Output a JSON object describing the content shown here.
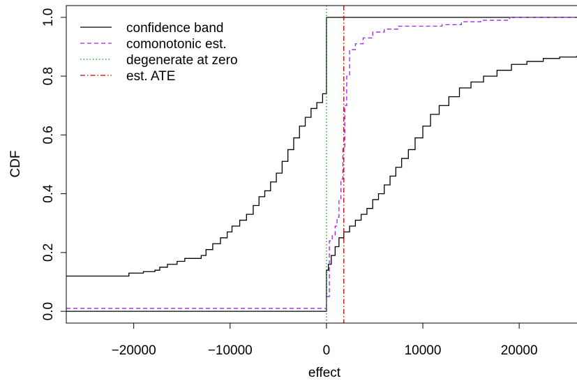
{
  "chart_data": {
    "type": "line",
    "title": "",
    "xlabel": "effect",
    "ylabel": "CDF",
    "xlim": [
      -27000,
      26000
    ],
    "ylim": [
      -0.04,
      1.04
    ],
    "grid": false,
    "legend_position": "top-left",
    "x_ticks": [
      {
        "value": -20000,
        "label": "−20000"
      },
      {
        "value": -10000,
        "label": "−10000"
      },
      {
        "value": 0,
        "label": "0"
      },
      {
        "value": 10000,
        "label": "10000"
      },
      {
        "value": 20000,
        "label": "20000"
      }
    ],
    "y_ticks": [
      {
        "value": 0.0,
        "label": "0.0"
      },
      {
        "value": 0.2,
        "label": "0.2"
      },
      {
        "value": 0.4,
        "label": "0.4"
      },
      {
        "value": 0.6,
        "label": "0.6"
      },
      {
        "value": 0.8,
        "label": "0.8"
      },
      {
        "value": 1.0,
        "label": "1.0"
      }
    ],
    "series": [
      {
        "name": "confidence band",
        "style": "solid",
        "color": "#000000",
        "x": [
          -27000,
          -21000,
          -20500,
          -19000,
          -17800,
          -17300,
          -16500,
          -15500,
          -14700,
          -13000,
          -12500,
          -11800,
          -11000,
          -10300,
          -9800,
          -9000,
          -8300,
          -7600,
          -7000,
          -6400,
          -5800,
          -5200,
          -4600,
          -4000,
          -3400,
          -2800,
          -2200,
          -1600,
          -1000,
          -400,
          0,
          0
        ],
        "y": [
          0.12,
          0.12,
          0.13,
          0.135,
          0.14,
          0.15,
          0.16,
          0.17,
          0.18,
          0.19,
          0.21,
          0.23,
          0.25,
          0.27,
          0.29,
          0.31,
          0.33,
          0.36,
          0.39,
          0.41,
          0.44,
          0.47,
          0.51,
          0.55,
          0.59,
          0.63,
          0.66,
          0.69,
          0.71,
          0.74,
          0.76,
          1.0
        ]
      },
      {
        "name": "confidence band",
        "style": "solid",
        "color": "#000000",
        "x": [
          0,
          26000
        ],
        "y": [
          1.0,
          1.0
        ]
      },
      {
        "name": "confidence band",
        "style": "solid",
        "color": "#000000",
        "x": [
          -27000,
          0,
          0,
          200,
          500,
          900,
          1300,
          1800,
          2400,
          3000,
          3600,
          4200,
          4800,
          5400,
          6000,
          6600,
          7200,
          7800,
          8500,
          9200,
          10000,
          10800,
          11700,
          12700,
          13800,
          15000,
          16300,
          17700,
          19200,
          20800,
          22500,
          24200,
          26000
        ],
        "y": [
          0.0,
          0.0,
          0.14,
          0.16,
          0.19,
          0.22,
          0.25,
          0.27,
          0.29,
          0.31,
          0.33,
          0.35,
          0.38,
          0.4,
          0.43,
          0.46,
          0.49,
          0.52,
          0.55,
          0.59,
          0.63,
          0.67,
          0.7,
          0.73,
          0.76,
          0.78,
          0.8,
          0.82,
          0.84,
          0.85,
          0.86,
          0.865,
          0.87
        ]
      },
      {
        "name": "comonotonic est.",
        "style": "dashed",
        "color": "#a020f0",
        "x": [
          -27000,
          0,
          0,
          300,
          600,
          900,
          1100,
          1300,
          1500,
          1700,
          1900,
          2100,
          2400,
          3000,
          3800,
          4800,
          6000,
          7500,
          9500,
          12000,
          14000,
          16000,
          19000,
          26000
        ],
        "y": [
          0.01,
          0.01,
          0.05,
          0.24,
          0.26,
          0.29,
          0.32,
          0.38,
          0.45,
          0.56,
          0.7,
          0.8,
          0.89,
          0.91,
          0.93,
          0.95,
          0.96,
          0.97,
          0.97,
          0.975,
          0.985,
          0.99,
          1.0,
          1.0
        ]
      },
      {
        "name": "degenerate at zero",
        "style": "dotted",
        "color": "#00a000",
        "vertical_at": 0
      },
      {
        "name": "est. ATE",
        "style": "dotdash",
        "color": "#c00000",
        "vertical_at": 1800
      }
    ]
  },
  "legend": [
    {
      "label": "confidence band",
      "color": "#000000",
      "dash": ""
    },
    {
      "label": "comonotonic est.",
      "color": "#a020f0",
      "dash": "6,4"
    },
    {
      "label": "degenerate at zero",
      "color": "#00a000",
      "dash": "1.5,3"
    },
    {
      "label": "est. ATE",
      "color": "#c00000",
      "dash": "7,3,1.5,3"
    }
  ]
}
